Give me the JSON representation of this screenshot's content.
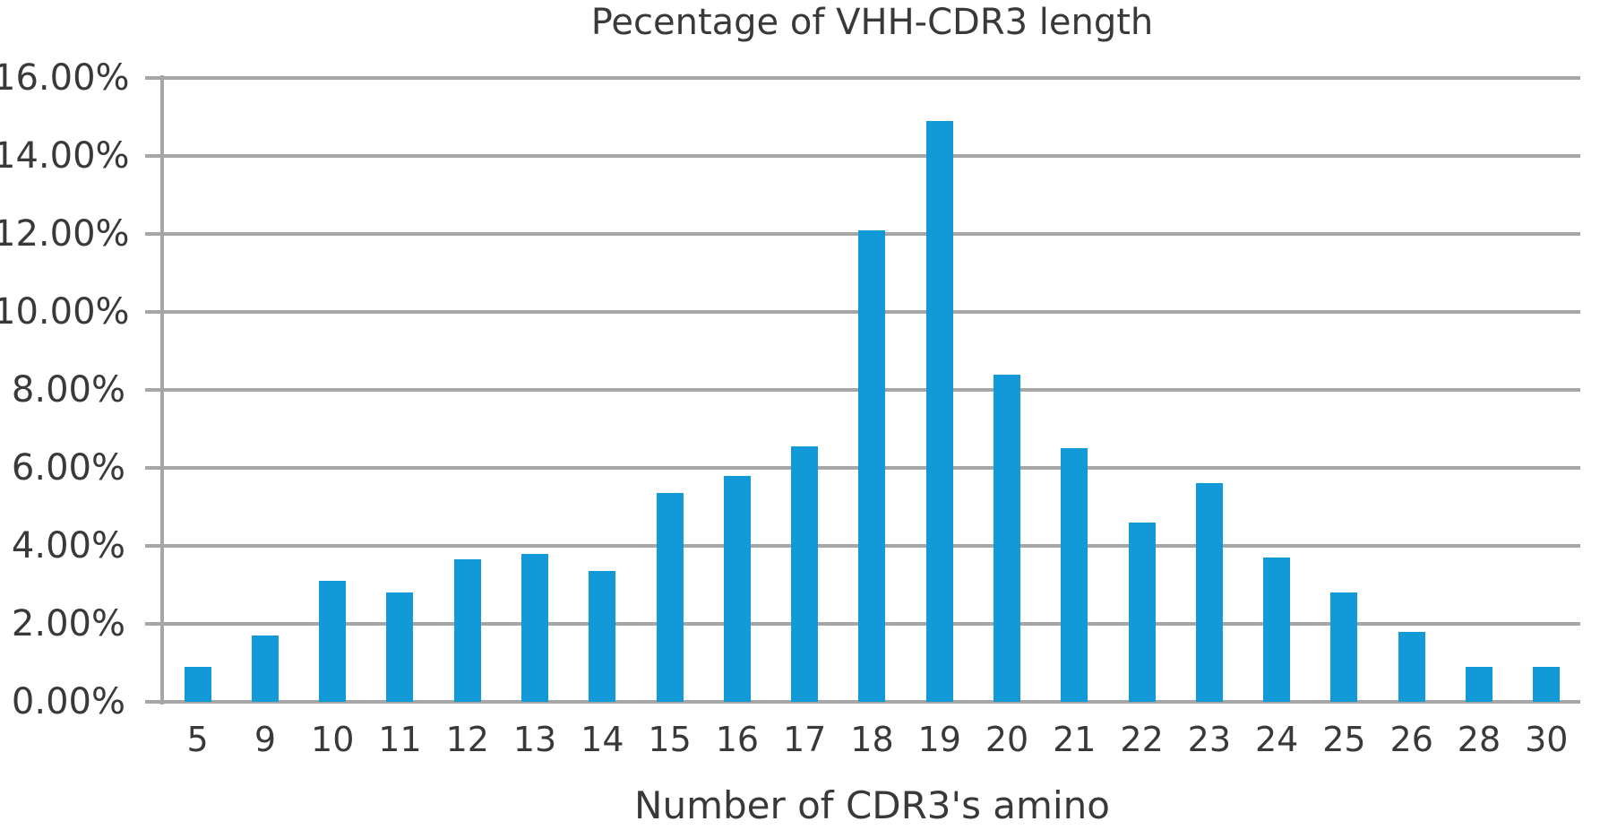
{
  "chart_data": {
    "type": "bar",
    "title": "Pecentage of VHH-CDR3 length",
    "xlabel": "Number of CDR3's amino",
    "ylabel": "",
    "categories": [
      "5",
      "9",
      "10",
      "11",
      "12",
      "13",
      "14",
      "15",
      "16",
      "17",
      "18",
      "19",
      "20",
      "21",
      "22",
      "23",
      "24",
      "25",
      "26",
      "28",
      "30"
    ],
    "values": [
      0.9,
      1.7,
      3.1,
      2.8,
      3.65,
      3.8,
      3.35,
      5.35,
      5.8,
      6.55,
      12.1,
      14.9,
      8.4,
      6.5,
      4.6,
      5.6,
      3.7,
      2.8,
      1.8,
      0.9,
      0.9
    ],
    "ylim": [
      0,
      16
    ],
    "ytick_step": 2,
    "ytick_labels": [
      "0.00%",
      "2.00%",
      "4.00%",
      "6.00%",
      "8.00%",
      "10.00%",
      "12.00%",
      "14.00%",
      "16.00%"
    ],
    "grid": "horizontal",
    "legend": "none",
    "colors": {
      "bar": "#1199d8",
      "grid": "#a6a6a6",
      "axis": "#a6a6a6",
      "text": "#3b3838"
    }
  }
}
